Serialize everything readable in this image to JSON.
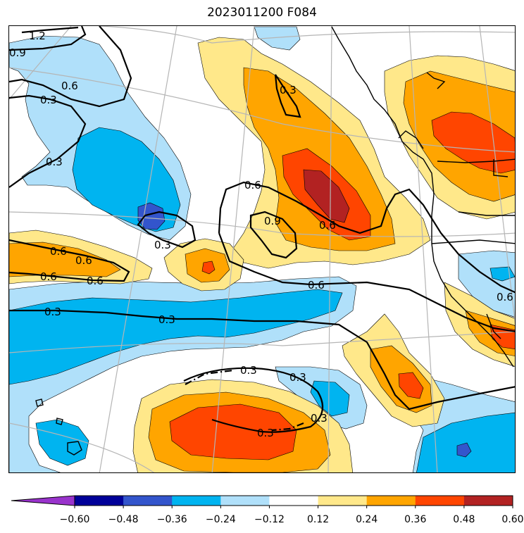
{
  "title": "2023011200 F084",
  "colors": {
    "neg_060": "#9933cc",
    "neg_048": "#000099",
    "neg_036": "#3355cc",
    "neg_024": "#00b4f0",
    "neg_012": "#b0e0fa",
    "zero": "#ffffff",
    "pos_012": "#ffe88a",
    "pos_024": "#ffa500",
    "pos_036": "#ff4500",
    "pos_048": "#b22222",
    "pos_060": "#ff80a8"
  },
  "colorbar": {
    "tick_labels": [
      "−0.60",
      "−0.48",
      "−0.36",
      "−0.24",
      "−0.12",
      "0.12",
      "0.24",
      "0.36",
      "0.48",
      "0.60"
    ]
  },
  "contour_labels": {
    "c1": "1.2",
    "c2": "0.9",
    "c3": "0.6",
    "c4": "0.3",
    "c5": "0.3",
    "c6": "0.3",
    "c7": "0.3",
    "c8": "0.6",
    "c9": "0.9",
    "c10": "0.6",
    "c11": "0.6",
    "c12": "0.6",
    "c13": "0.6",
    "c14": "0.6",
    "c15": "0.3",
    "c16": "0.3",
    "c17": "0.6",
    "c18": "0.6",
    "c19": "0.3",
    "c20": "0.3",
    "c21": "0.3",
    "c22": "0.3"
  }
}
